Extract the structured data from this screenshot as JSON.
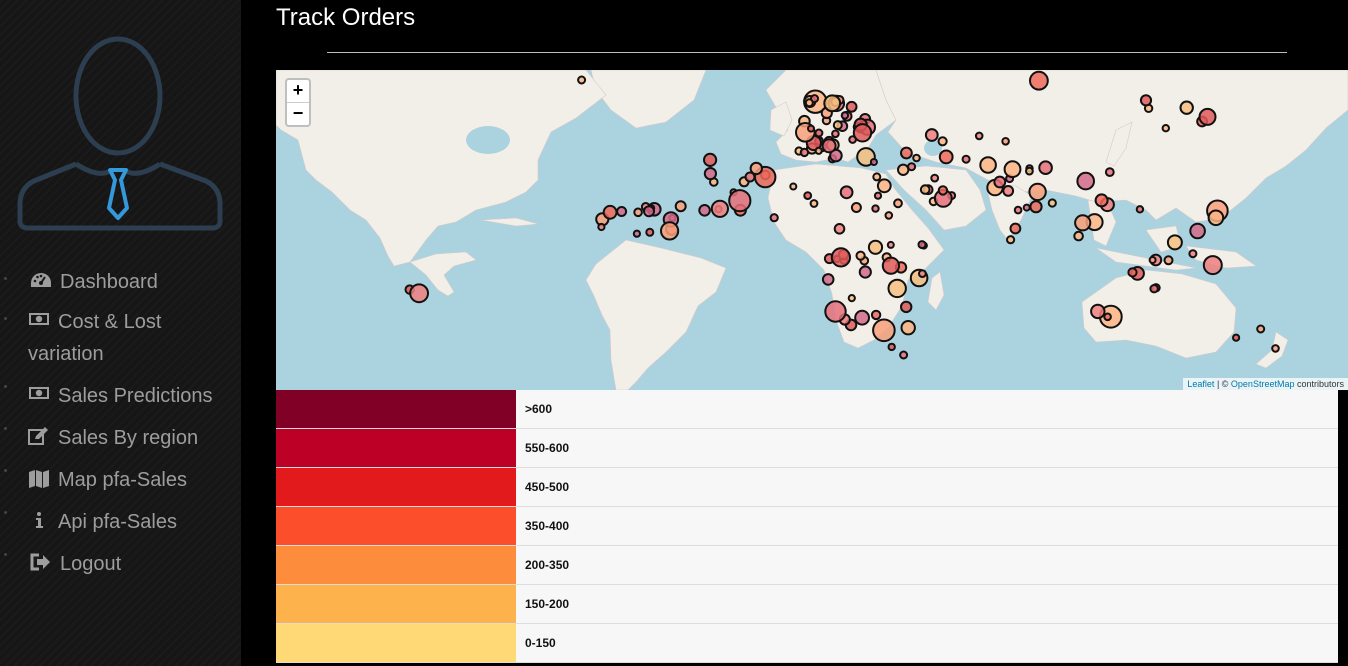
{
  "sidebar": {
    "nav": [
      {
        "label": "Dashboard",
        "icon": "dashboard-icon"
      },
      {
        "label": "Cost & Lost variation",
        "icon": "money-icon"
      },
      {
        "label": "Sales Predictions",
        "icon": "money-icon"
      },
      {
        "label": "Sales By region",
        "icon": "edit-icon"
      },
      {
        "label": "Map pfa-Sales",
        "icon": "map-icon"
      },
      {
        "label": "Api pfa-Sales",
        "icon": "info-icon"
      },
      {
        "label": "Logout",
        "icon": "sign-out-icon"
      }
    ]
  },
  "main": {
    "title": "Track Orders"
  },
  "map": {
    "zoom_in": "+",
    "zoom_out": "−",
    "attribution": {
      "leaflet": "Leaflet",
      "sep": " | © ",
      "osm": "OpenStreetMap",
      "tail": " contributors"
    }
  },
  "legend": [
    {
      "label": ">600",
      "color": "#800026"
    },
    {
      "label": "550-600",
      "color": "#bd0026"
    },
    {
      "label": "450-500",
      "color": "#e31a1c"
    },
    {
      "label": "350-400",
      "color": "#fc4e2a"
    },
    {
      "label": "200-350",
      "color": "#fd8d3c"
    },
    {
      "label": "150-200",
      "color": "#feb24c"
    },
    {
      "label": "0-150",
      "color": "#fed976"
    }
  ],
  "colors": {
    "sea": "#aad3df",
    "land": "#f2efe9",
    "avatar": "#2c3e50",
    "tie": "#3498db"
  }
}
